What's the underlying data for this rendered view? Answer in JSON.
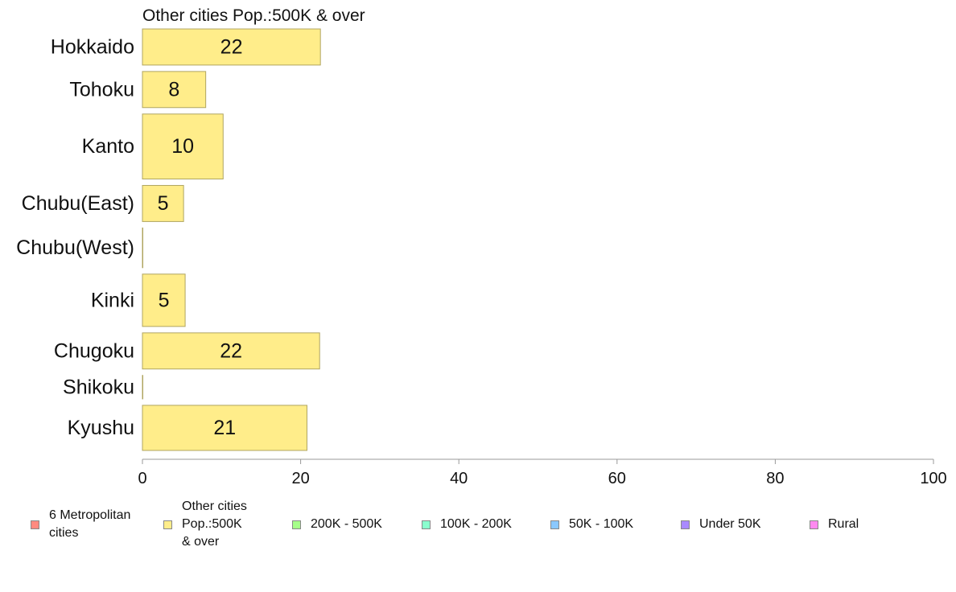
{
  "chart_data": {
    "type": "bar",
    "orientation": "horizontal",
    "title": "Other cities Pop.:500K & over",
    "categories": [
      "Hokkaido",
      "Tohoku",
      "Kanto",
      "Chubu(East)",
      "Chubu(West)",
      "Kinki",
      "Chugoku",
      "Shikoku",
      "Kyushu"
    ],
    "values": [
      22.5,
      8,
      10.2,
      5.2,
      0,
      5.4,
      22.4,
      0,
      20.8
    ],
    "data_labels": [
      "22",
      "8",
      "10",
      "5",
      "",
      "5",
      "22",
      "",
      "21"
    ],
    "bar_weight": [
      1,
      1,
      1.8,
      1,
      1.1,
      1.45,
      1,
      0.65,
      1.25
    ],
    "xlim": [
      0,
      100
    ],
    "xticks": [
      0,
      20,
      40,
      60,
      80,
      100
    ],
    "xlabel": "",
    "ylabel": "",
    "grid": false,
    "bar_color": "#FFED8A",
    "bar_stroke": "#B0A560",
    "axis_color": "#999999",
    "legend_position": "bottom",
    "legend": [
      {
        "label": "6 Metropolitan\n cities",
        "color": "#FF8A80"
      },
      {
        "label": "Other cities\nPop.:500K\n & over",
        "color": "#FFED8A"
      },
      {
        "label": "200K - 500K",
        "color": "#A6FF8A"
      },
      {
        "label": "100K - 200K",
        "color": "#8AFFCE"
      },
      {
        "label": "50K - 100K",
        "color": "#8AC8FF"
      },
      {
        "label": "Under 50K",
        "color": "#A98AFF"
      },
      {
        "label": "Rural",
        "color": "#FF8AF0"
      }
    ]
  }
}
